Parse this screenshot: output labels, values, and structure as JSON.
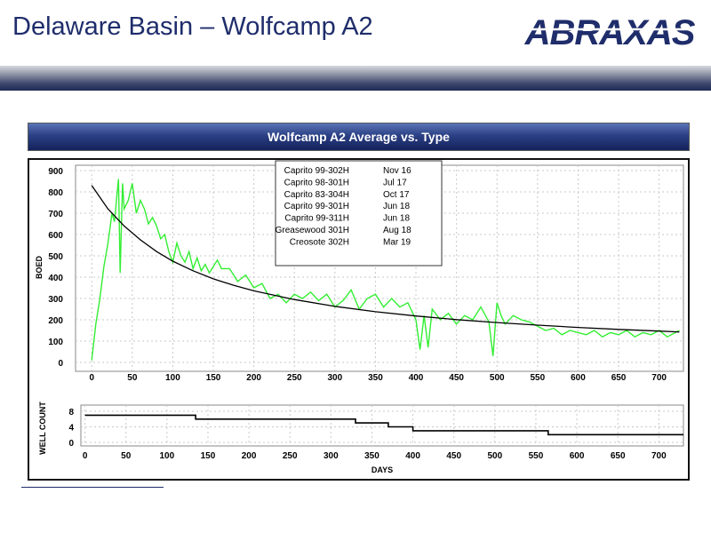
{
  "slide": {
    "title": "Delaware Basin – Wolfcamp A2",
    "logo_text": "ABRAXAS"
  },
  "colors": {
    "title": "#1f2d6b",
    "logo": "#1f2d6b",
    "actual_series": "#33ee33",
    "type_curve": "#000000",
    "well_count": "#000000"
  },
  "chart_data": [
    {
      "type": "line",
      "title": "Wolfcamp A2 Average vs. Type",
      "xlabel": "",
      "ylabel": "BOED",
      "xlim": [
        -20,
        730
      ],
      "ylim": [
        0,
        900
      ],
      "x_ticks": [
        0,
        50,
        100,
        150,
        200,
        250,
        300,
        350,
        400,
        450,
        500,
        550,
        600,
        650,
        700
      ],
      "y_ticks": [
        0,
        100,
        200,
        300,
        400,
        500,
        600,
        700,
        800,
        900
      ],
      "grid": true,
      "legend": {
        "placement": "top-center",
        "entries": [
          {
            "well": "Caprito 99-302H",
            "date": "Nov 16"
          },
          {
            "well": "Caprito 98-301H",
            "date": "Jul 17"
          },
          {
            "well": "Caprito 83-304H",
            "date": "Oct 17"
          },
          {
            "well": "Caprito 99-301H",
            "date": "Jun 18"
          },
          {
            "well": "Caprito 99-311H",
            "date": "Jun 18"
          },
          {
            "well": "Greasewood 301H",
            "date": "Aug 18"
          },
          {
            "well": "Creosote 302H",
            "date": "Mar 19"
          }
        ]
      },
      "series": [
        {
          "style": "average (green)",
          "x": [
            0,
            5,
            10,
            15,
            20,
            25,
            28,
            30,
            33,
            35,
            38,
            40,
            45,
            50,
            55,
            60,
            65,
            70,
            75,
            80,
            85,
            90,
            95,
            100,
            105,
            110,
            115,
            120,
            125,
            130,
            135,
            140,
            145,
            150,
            155,
            160,
            170,
            180,
            190,
            200,
            210,
            220,
            230,
            240,
            250,
            260,
            270,
            280,
            290,
            300,
            310,
            320,
            330,
            340,
            350,
            360,
            370,
            380,
            390,
            400,
            405,
            410,
            415,
            420,
            430,
            440,
            450,
            460,
            470,
            480,
            490,
            495,
            500,
            505,
            510,
            520,
            530,
            540,
            550,
            560,
            570,
            580,
            590,
            600,
            610,
            620,
            630,
            640,
            650,
            660,
            670,
            680,
            690,
            700,
            710,
            720,
            725
          ],
          "values": [
            10,
            180,
            300,
            450,
            560,
            700,
            660,
            740,
            860,
            420,
            840,
            720,
            760,
            840,
            700,
            760,
            720,
            650,
            680,
            640,
            580,
            600,
            520,
            470,
            560,
            500,
            470,
            520,
            440,
            490,
            430,
            460,
            420,
            450,
            480,
            440,
            440,
            380,
            410,
            350,
            370,
            300,
            320,
            280,
            320,
            300,
            330,
            290,
            320,
            260,
            290,
            340,
            250,
            300,
            320,
            260,
            300,
            260,
            280,
            200,
            60,
            220,
            70,
            250,
            200,
            230,
            180,
            220,
            200,
            260,
            190,
            30,
            280,
            220,
            180,
            220,
            200,
            190,
            170,
            150,
            160,
            130,
            150,
            140,
            130,
            150,
            120,
            140,
            130,
            150,
            120,
            140,
            130,
            150,
            120,
            140,
            150
          ]
        },
        {
          "style": "type curve (black)",
          "x": [
            0,
            20,
            40,
            60,
            80,
            100,
            125,
            150,
            175,
            200,
            250,
            300,
            350,
            400,
            450,
            500,
            550,
            600,
            650,
            700,
            725
          ],
          "values": [
            830,
            720,
            640,
            575,
            520,
            475,
            430,
            392,
            362,
            336,
            295,
            263,
            238,
            218,
            201,
            187,
            175,
            164,
            155,
            147,
            143
          ]
        }
      ]
    },
    {
      "type": "line",
      "title": "",
      "xlabel": "DAYS",
      "ylabel": "WELL COUNT",
      "xlim": [
        -5,
        730
      ],
      "ylim": [
        -2,
        9
      ],
      "x_ticks": [
        0,
        50,
        100,
        150,
        200,
        250,
        300,
        350,
        400,
        450,
        500,
        550,
        600,
        650,
        700
      ],
      "y_ticks": [
        0,
        4,
        8
      ],
      "grid": true,
      "series": [
        {
          "style": "step",
          "x": [
            0,
            135,
            135,
            330,
            330,
            370,
            370,
            400,
            400,
            565,
            565,
            730
          ],
          "values": [
            7,
            7,
            6,
            6,
            5,
            5,
            4,
            4,
            3,
            3,
            2,
            2
          ]
        }
      ]
    }
  ]
}
